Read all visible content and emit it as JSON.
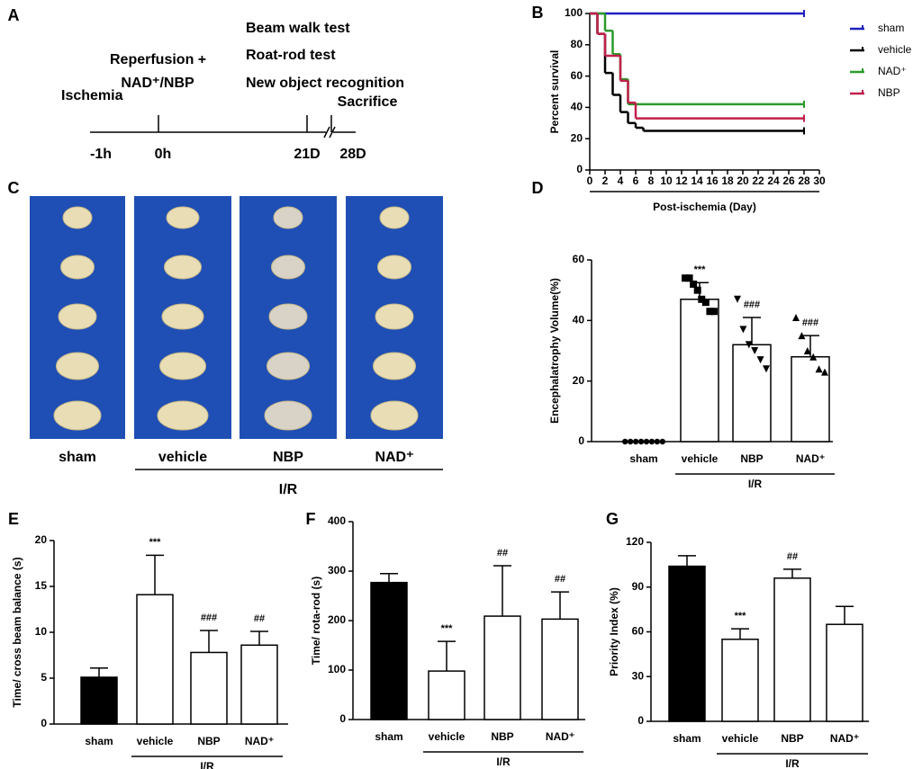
{
  "panel_labels": [
    "A",
    "B",
    "C",
    "D",
    "E",
    "F",
    "G"
  ],
  "timeline": {
    "events": [
      "Ischemia",
      "Reperfusion +",
      "NAD⁺/NBP",
      "Beam walk test",
      "Roat-rod test",
      "New object recognition",
      "Sacrifice"
    ],
    "ticks": [
      "-1h",
      "0h",
      "21D",
      "28D"
    ]
  },
  "photo_panel": {
    "groups": [
      "sham",
      "vehicle",
      "NBP",
      "NAD⁺"
    ],
    "group_label": "I/R"
  },
  "chart_data": [
    {
      "type": "line",
      "drawstyle": "steps-post",
      "ylabel": "Percent survival",
      "xlabel": "Post-ischemia (Day)",
      "xlim": [
        0,
        30
      ],
      "xticks": [
        0,
        2,
        4,
        6,
        8,
        10,
        12,
        14,
        16,
        18,
        20,
        22,
        24,
        26,
        28,
        30
      ],
      "ylim": [
        0,
        100
      ],
      "yticks": [
        0,
        20,
        40,
        60,
        80,
        100
      ],
      "series": [
        {
          "name": "sham",
          "color": "#1f1fbf",
          "x": [
            0,
            28
          ],
          "values": [
            100,
            100
          ]
        },
        {
          "name": "vehicle",
          "color": "#000000",
          "x": [
            0,
            1,
            2,
            3,
            4,
            5,
            6,
            7,
            28
          ],
          "values": [
            100,
            87,
            62,
            48,
            37,
            30,
            27,
            25,
            25
          ]
        },
        {
          "name": "NAD⁺",
          "color": "#2a9a2a",
          "x": [
            0,
            2,
            3,
            4,
            5,
            28
          ],
          "values": [
            100,
            89,
            74,
            58,
            42,
            42
          ]
        },
        {
          "name": "NBP",
          "color": "#c0204a",
          "x": [
            0,
            1,
            2,
            4,
            5,
            6,
            28
          ],
          "values": [
            100,
            87,
            73,
            57,
            43,
            33,
            33
          ]
        }
      ]
    },
    {
      "type": "bar",
      "ylabel": "Encephalatrophy Volume(%)",
      "categories": [
        "sham",
        "vehicle",
        "NBP",
        "NAD⁺"
      ],
      "group_label": "I/R",
      "values": [
        0,
        47,
        32,
        28
      ],
      "errors": [
        0,
        5.5,
        9,
        7
      ],
      "colors": [
        "#ffffff",
        "#ffffff",
        "#ffffff",
        "#ffffff"
      ],
      "annotations": [
        null,
        "***",
        "###",
        "###"
      ],
      "markers": [
        "circle",
        "square",
        "triangle-down",
        "triangle-up"
      ],
      "points": [
        [
          0,
          0,
          0,
          0,
          0,
          0,
          0,
          0
        ],
        [
          54,
          54,
          52,
          50,
          47,
          46,
          43,
          43
        ],
        [
          47,
          37,
          32,
          30,
          27,
          24
        ],
        [
          41,
          35,
          30,
          28,
          24,
          23
        ]
      ],
      "ylim": [
        0,
        60
      ],
      "yticks": [
        0,
        20,
        40,
        60
      ]
    },
    {
      "type": "bar",
      "ylabel": "Time/ cross beam balance (s)",
      "categories": [
        "sham",
        "vehicle",
        "NBP",
        "NAD⁺"
      ],
      "group_label": "I/R",
      "values": [
        5.1,
        14.1,
        7.8,
        8.6
      ],
      "errors": [
        1,
        4.3,
        2.4,
        1.5
      ],
      "colors": [
        "#000000",
        "#ffffff",
        "#ffffff",
        "#ffffff"
      ],
      "annotations": [
        null,
        "***",
        "###",
        "##"
      ],
      "ylim": [
        0,
        20
      ],
      "yticks": [
        0,
        5,
        10,
        15,
        20
      ]
    },
    {
      "type": "bar",
      "ylabel": "Time/ rota-rod (s)",
      "categories": [
        "sham",
        "vehicle",
        "NBP",
        "NAD⁺"
      ],
      "group_label": "I/R",
      "values": [
        277,
        98,
        209,
        203
      ],
      "errors": [
        18,
        60,
        102,
        55
      ],
      "colors": [
        "#000000",
        "#ffffff",
        "#ffffff",
        "#ffffff"
      ],
      "annotations": [
        null,
        "***",
        "##",
        "##"
      ],
      "ylim": [
        0,
        400
      ],
      "yticks": [
        0,
        100,
        200,
        300,
        400
      ]
    },
    {
      "type": "bar",
      "ylabel": "Priority Index (%)",
      "categories": [
        "sham",
        "vehicle",
        "NBP",
        "NAD⁺"
      ],
      "group_label": "I/R",
      "values": [
        104,
        55,
        96,
        65
      ],
      "errors": [
        7,
        7,
        6,
        12
      ],
      "colors": [
        "#000000",
        "#ffffff",
        "#ffffff",
        "#ffffff"
      ],
      "annotations": [
        null,
        "***",
        "##",
        null
      ],
      "ylim": [
        0,
        120
      ],
      "yticks": [
        0,
        30,
        60,
        90,
        120
      ]
    }
  ]
}
